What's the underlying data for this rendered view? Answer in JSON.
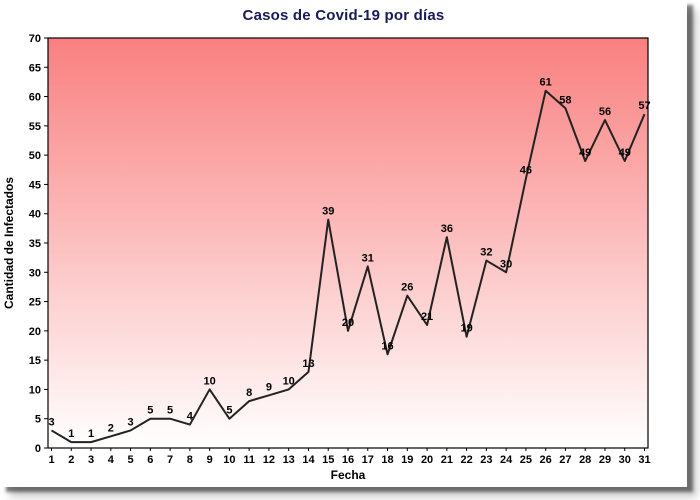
{
  "chart_data": {
    "type": "line",
    "title": "Casos de Covid-19 por días",
    "xlabel": "Fecha",
    "ylabel": "Cantidad de Infectados",
    "categories": [
      "1",
      "2",
      "3",
      "4",
      "5",
      "6",
      "7",
      "8",
      "9",
      "10",
      "11",
      "12",
      "13",
      "14",
      "15",
      "16",
      "17",
      "18",
      "19",
      "20",
      "21",
      "22",
      "23",
      "24",
      "25",
      "26",
      "27",
      "28",
      "29",
      "30",
      "31"
    ],
    "values": [
      3,
      1,
      1,
      2,
      3,
      5,
      5,
      4,
      10,
      5,
      8,
      9,
      10,
      13,
      39,
      20,
      31,
      16,
      26,
      21,
      36,
      19,
      32,
      30,
      46,
      61,
      58,
      49,
      56,
      49,
      57
    ],
    "ylim": [
      0,
      70
    ],
    "yticks": [
      0,
      5,
      10,
      15,
      20,
      25,
      30,
      35,
      40,
      45,
      50,
      55,
      60,
      65,
      70
    ],
    "grid": false,
    "legend": false,
    "point_labels": true,
    "styles": {
      "title_color": "#1a1a5a",
      "line_color": "#222222",
      "bg_gradient_top": "#f98080",
      "bg_gradient_bottom": "#ffffff",
      "plot_border_color": "#000000",
      "text_color": "#000000",
      "window_shadow_color": "#8a8a8a"
    }
  }
}
